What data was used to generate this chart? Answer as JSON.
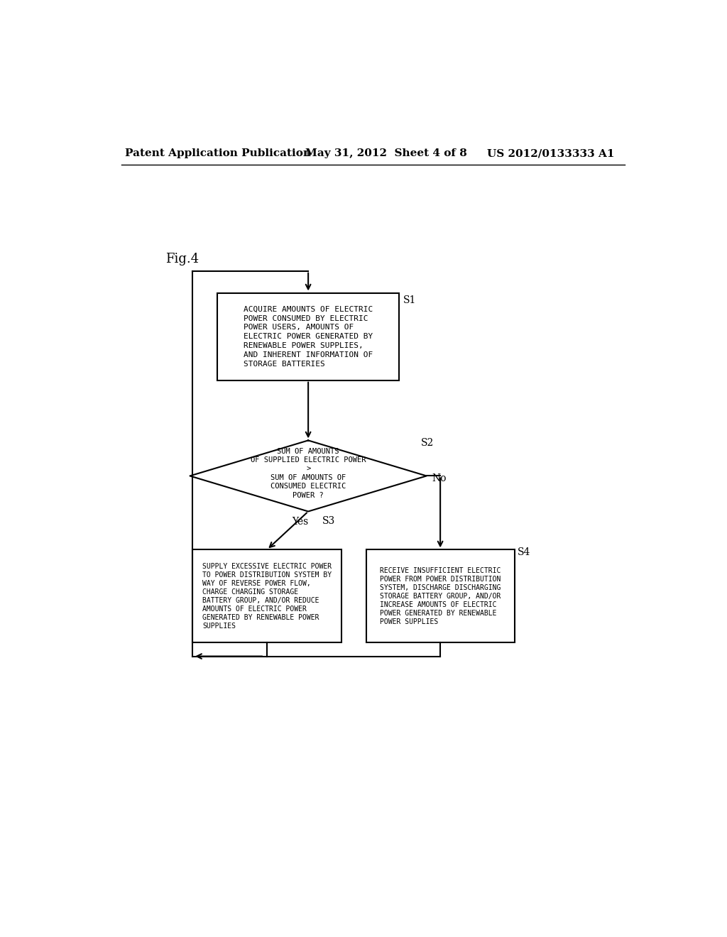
{
  "background_color": "#ffffff",
  "header_left": "Patent Application Publication",
  "header_center": "May 31, 2012  Sheet 4 of 8",
  "header_right": "US 2012/0133333 A1",
  "fig_label": "Fig.4",
  "s1_label": "S1",
  "s2_label": "S2",
  "s3_label": "S3",
  "s4_label": "S4",
  "box1_text": "ACQUIRE AMOUNTS OF ELECTRIC\nPOWER CONSUMED BY ELECTRIC\nPOWER USERS, AMOUNTS OF\nELECTRIC POWER GENERATED BY\nRENEWABLE POWER SUPPLIES,\nAND INHERENT INFORMATION OF\nSTORAGE BATTERIES",
  "diamond_line1": "SUM OF AMOUNTS",
  "diamond_line2": "OF SUPPLIED ELECTRIC POWER",
  "diamond_line3": ">",
  "diamond_line4": "SUM OF AMOUNTS OF",
  "diamond_line5": "CONSUMED ELECTRIC",
  "diamond_line6": "POWER ?",
  "box3_text": "SUPPLY EXCESSIVE ELECTRIC POWER\nTO POWER DISTRIBUTION SYSTEM BY\nWAY OF REVERSE POWER FLOW,\nCHARGE CHARGING STORAGE\nBATTERY GROUP, AND/OR REDUCE\nAMOUNTS OF ELECTRIC POWER\nGENERATED BY RENEWABLE POWER\nSUPPLIES",
  "box4_text": "RECEIVE INSUFFICIENT ELECTRIC\nPOWER FROM POWER DISTRIBUTION\nSYSTEM, DISCHARGE DISCHARGING\nSTORAGE BATTERY GROUP, AND/OR\nINCREASE AMOUNTS OF ELECTRIC\nPOWER GENERATED BY RENEWABLE\nPOWER SUPPLIES",
  "yes_label": "Yes",
  "no_label": "No",
  "text_color": "#000000",
  "line_color": "#000000"
}
